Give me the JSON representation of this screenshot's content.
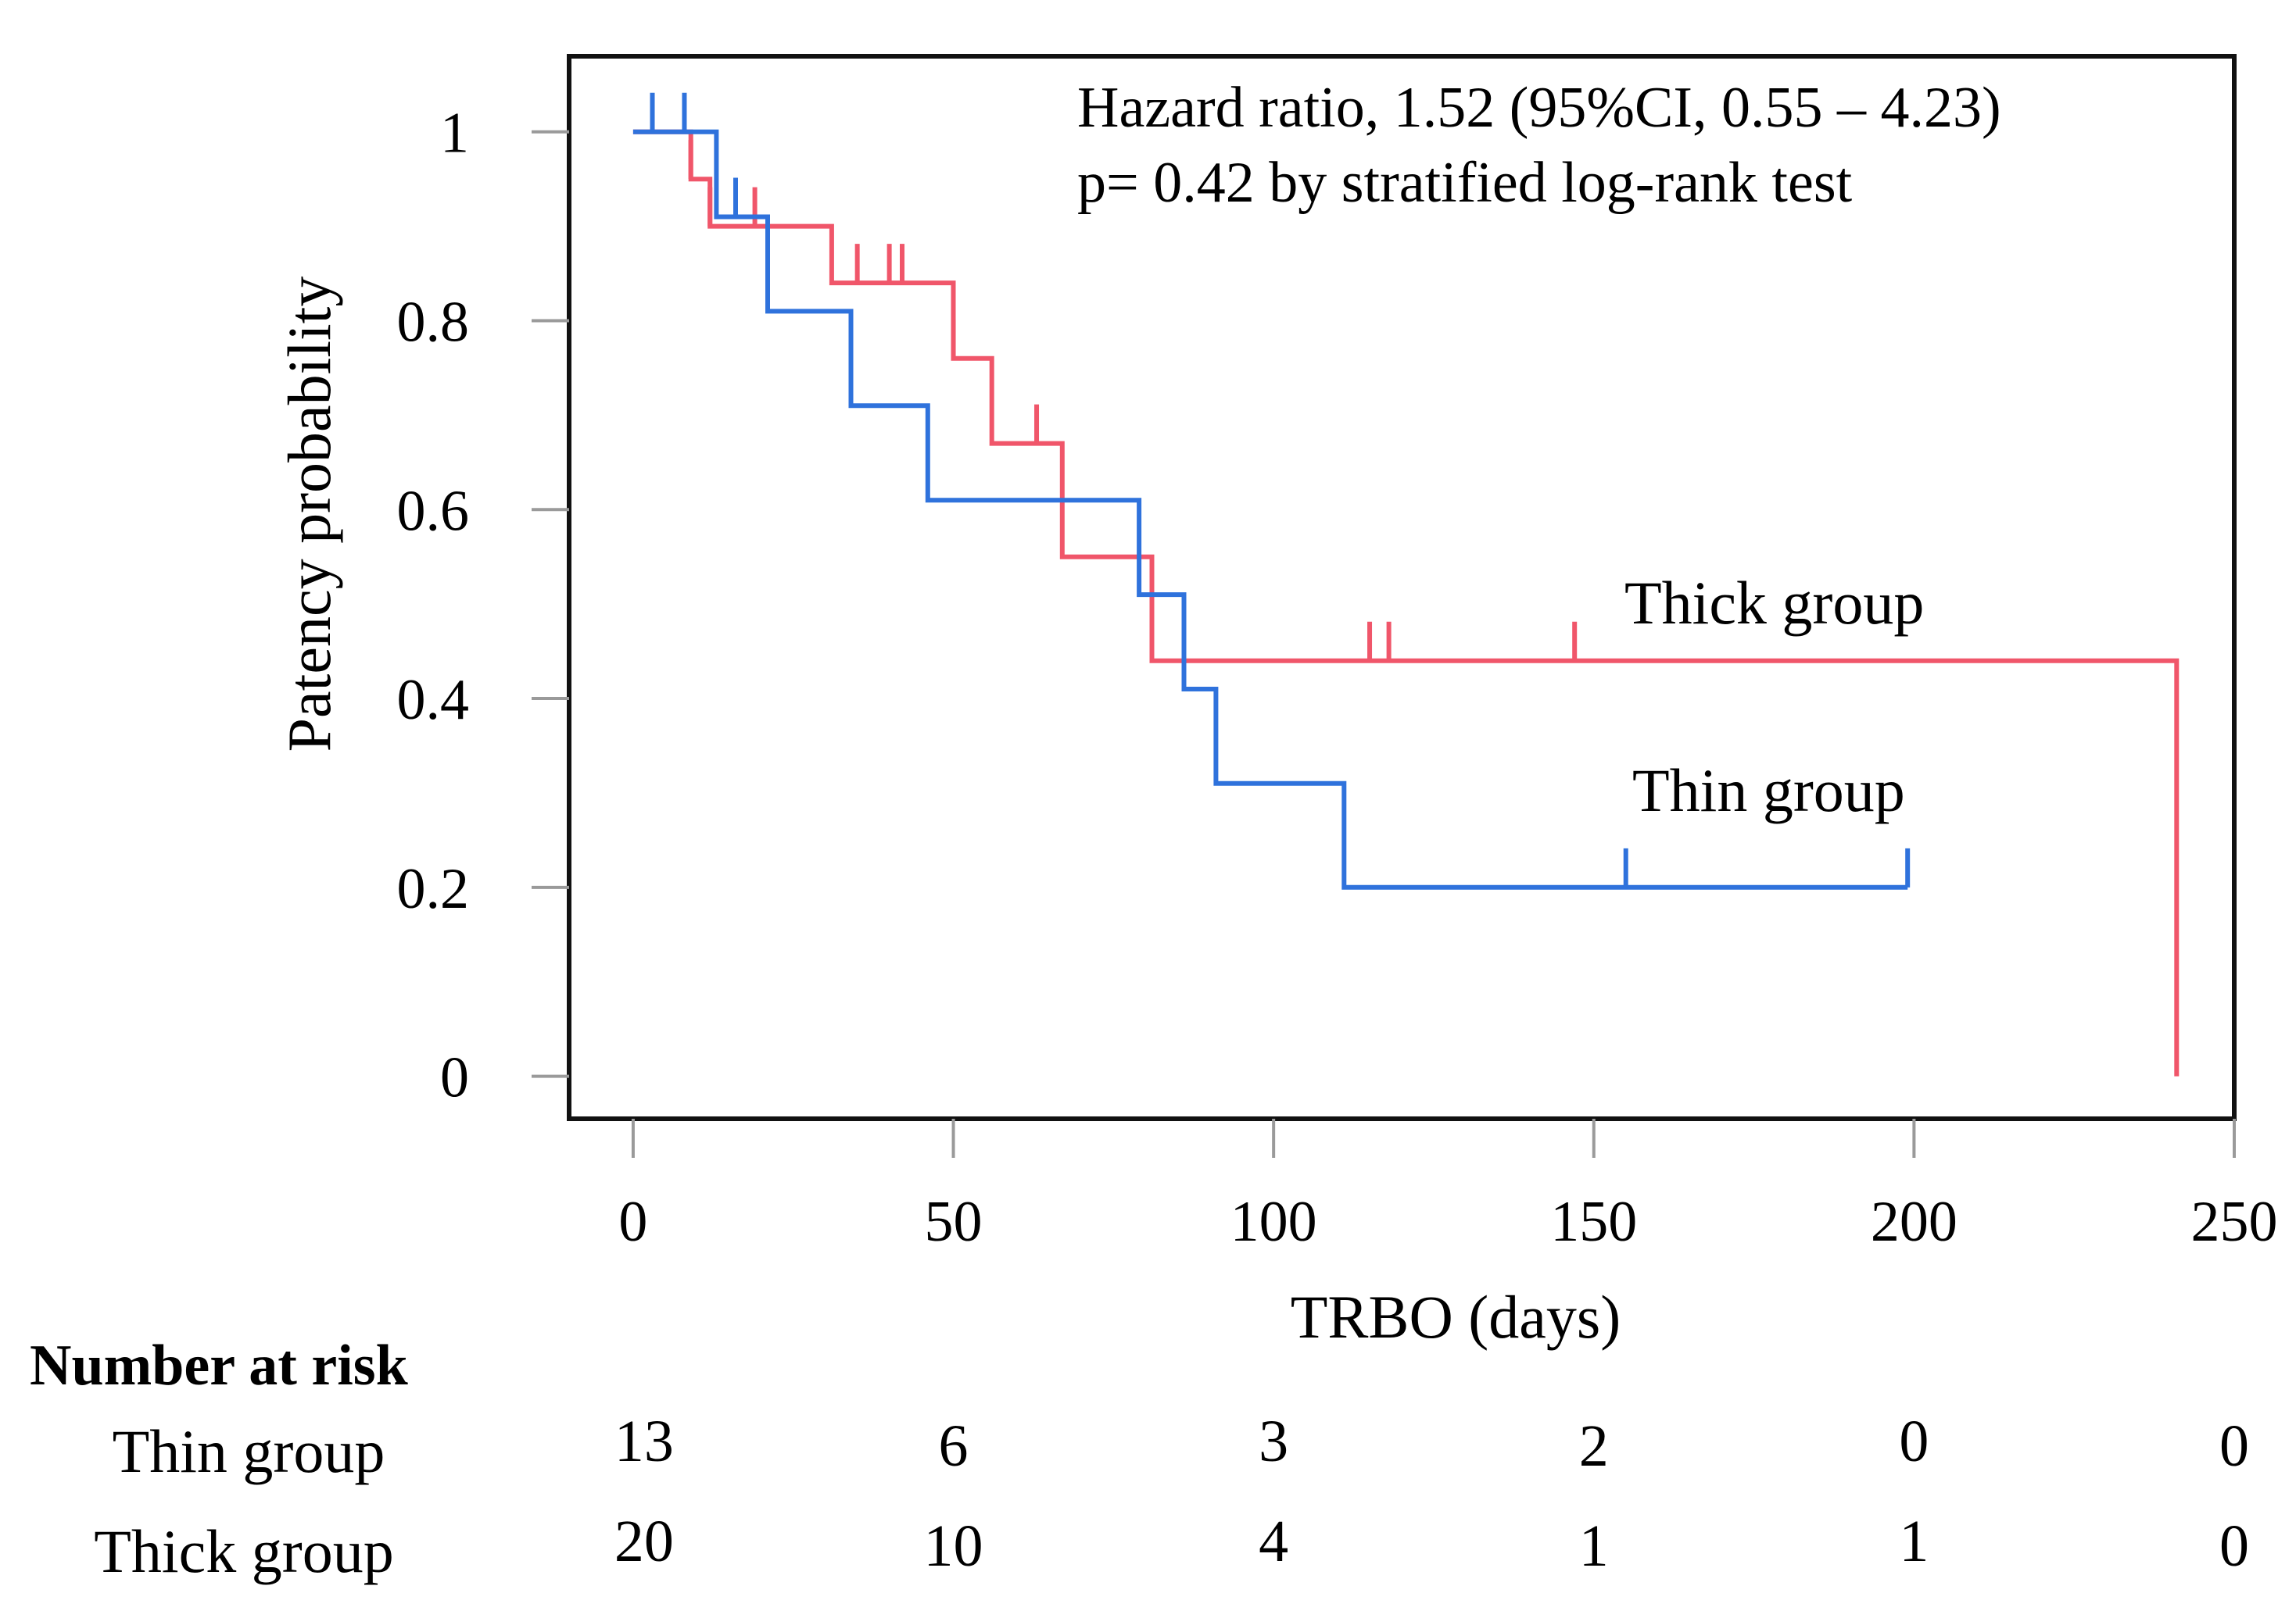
{
  "chart_data": {
    "type": "line",
    "subtype": "kaplan-meier",
    "title": "",
    "xlabel": "TRBO (days)",
    "ylabel": "Patency probability",
    "xlim": [
      -10,
      250
    ],
    "ylim": [
      -0.045,
      1.08
    ],
    "x_ticks": [
      0,
      50,
      100,
      150,
      200,
      250
    ],
    "x_tick_labels": [
      "0",
      "50",
      "100",
      "150",
      "200",
      "250"
    ],
    "y_ticks": [
      0,
      0.2,
      0.4,
      0.6,
      0.8,
      1
    ],
    "y_tick_labels": [
      "0",
      "0.2",
      "0.4",
      "0.6",
      "0.8",
      "1"
    ],
    "grid": false,
    "annotations": [
      "Hazard ratio, 1.52 (95%CI, 0.55 – 4.23)",
      "p= 0.42 by stratified log-rank test"
    ],
    "series": [
      {
        "name": "Thick group",
        "color": "#f0566a",
        "steps": [
          [
            0,
            1
          ],
          [
            9,
            0.95
          ],
          [
            12,
            0.9
          ],
          [
            31,
            0.84
          ],
          [
            50,
            0.76
          ],
          [
            56,
            0.67
          ],
          [
            67,
            0.55
          ],
          [
            81,
            0.44
          ],
          [
            241,
            0.0
          ]
        ],
        "end_x": 241,
        "censor_times": [
          9,
          12,
          19,
          35,
          40,
          42,
          50,
          63,
          115,
          118,
          147
        ]
      },
      {
        "name": "Thin group",
        "color": "#2f72dc",
        "steps": [
          [
            0,
            1
          ],
          [
            13,
            0.91
          ],
          [
            21,
            0.81
          ],
          [
            34,
            0.71
          ],
          [
            46,
            0.61
          ],
          [
            79,
            0.51
          ],
          [
            86,
            0.41
          ],
          [
            91,
            0.31
          ],
          [
            111,
            0.2
          ]
        ],
        "end_x": 199,
        "censor_times": [
          3,
          8,
          16,
          155,
          199
        ]
      }
    ],
    "number_at_risk": {
      "title": "Number at risk",
      "times": [
        0,
        50,
        100,
        150,
        200,
        250
      ],
      "rows": [
        {
          "label": "Thin group",
          "values": [
            "13",
            "6",
            "3",
            "2",
            "0",
            "0"
          ]
        },
        {
          "label": "Thick group",
          "values": [
            "20",
            "10",
            "4",
            "1",
            "1",
            "0"
          ]
        }
      ]
    }
  }
}
